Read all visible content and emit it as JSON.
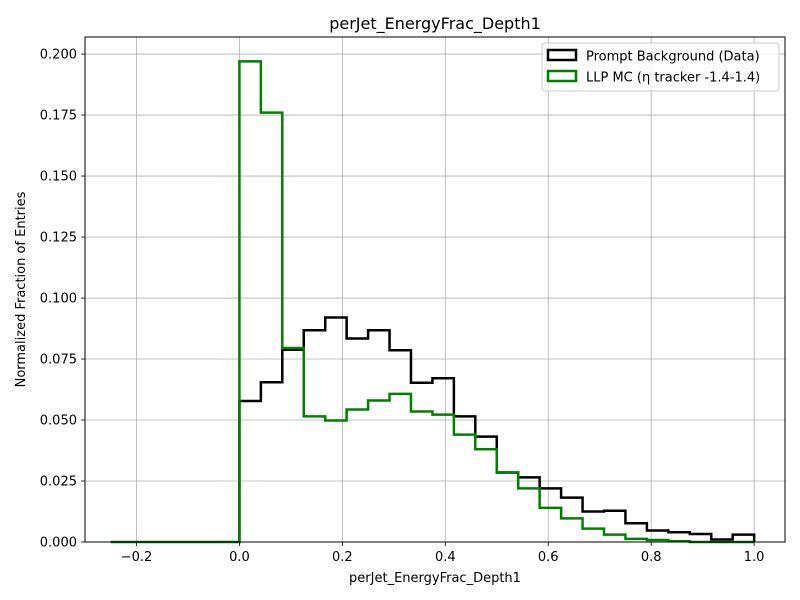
{
  "chart_data": {
    "type": "histogram-step",
    "title": "perJet_EnergyFrac_Depth1",
    "xlabel": "perJet_EnergyFrac_Depth1",
    "ylabel": "Normalized Fraction of Entries",
    "xlim": [
      -0.3,
      1.06
    ],
    "ylim": [
      0,
      0.207
    ],
    "xticks": [
      -0.2,
      0.0,
      0.2,
      0.4,
      0.6,
      0.8,
      1.0
    ],
    "xtick_labels": [
      "−0.2",
      "0.0",
      "0.2",
      "0.4",
      "0.6",
      "0.8",
      "1.0"
    ],
    "yticks": [
      0,
      0.025,
      0.05,
      0.075,
      0.1,
      0.125,
      0.15,
      0.175,
      0.2
    ],
    "ytick_labels": [
      "0.000",
      "0.025",
      "0.050",
      "0.075",
      "0.100",
      "0.125",
      "0.150",
      "0.175",
      "0.200"
    ],
    "grid": true,
    "legend_position": "top-right",
    "series": [
      {
        "name": "Prompt Background (Data)",
        "color": "#000000",
        "edges": [
          0.0,
          0.0417,
          0.0833,
          0.125,
          0.1667,
          0.2083,
          0.25,
          0.2917,
          0.3333,
          0.375,
          0.4167,
          0.4583,
          0.5,
          0.5417,
          0.5833,
          0.625,
          0.6667,
          0.7083,
          0.75,
          0.7917,
          0.8333,
          0.875,
          0.9167,
          0.9583,
          1.0
        ],
        "values": [
          0.0578,
          0.0655,
          0.0788,
          0.0868,
          0.092,
          0.0834,
          0.0868,
          0.0786,
          0.0653,
          0.0671,
          0.0515,
          0.0432,
          0.0285,
          0.0265,
          0.022,
          0.0182,
          0.0125,
          0.0128,
          0.0077,
          0.0047,
          0.004,
          0.0033,
          0.001,
          0.003
        ]
      },
      {
        "name": "LLP MC (η tracker -1.4-1.4)",
        "color": "#008000",
        "edges": [
          -0.25,
          -0.2083,
          -0.1667,
          -0.125,
          -0.0833,
          -0.0417,
          0.0,
          0.0417,
          0.0833,
          0.125,
          0.1667,
          0.2083,
          0.25,
          0.2917,
          0.3333,
          0.375,
          0.4167,
          0.4583,
          0.5,
          0.5417,
          0.5833,
          0.625,
          0.6667,
          0.7083,
          0.75,
          0.7917,
          0.8333,
          0.875,
          0.9167,
          0.9583,
          1.0
        ],
        "values": [
          0,
          0,
          0,
          0,
          0,
          0,
          0.197,
          0.176,
          0.0795,
          0.0515,
          0.0498,
          0.0543,
          0.058,
          0.0607,
          0.0535,
          0.0522,
          0.044,
          0.038,
          0.0285,
          0.022,
          0.014,
          0.0097,
          0.0055,
          0.003,
          0.0013,
          0.0008,
          0.0003,
          0,
          0,
          0
        ]
      }
    ]
  }
}
